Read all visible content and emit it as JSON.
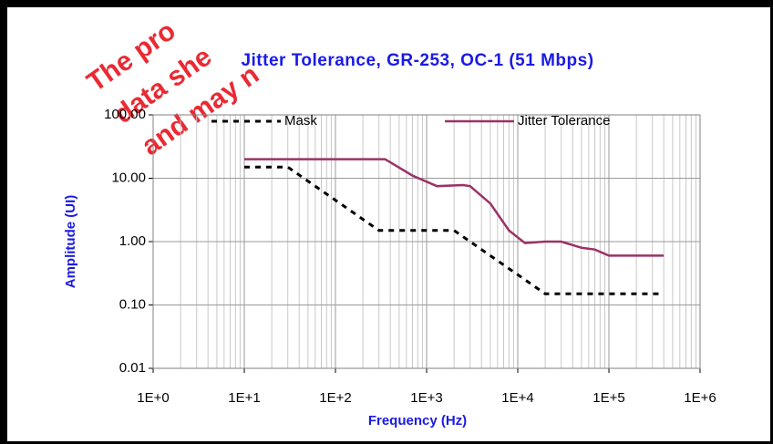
{
  "chart_data": {
    "type": "line",
    "title": "Jitter Tolerance, GR-253, OC-1 (51 Mbps)",
    "xlabel": "Frequency (Hz)",
    "ylabel": "Amplitude (UI)",
    "watermark": [
      "The pro",
      "data she",
      "and may n"
    ],
    "xlog": true,
    "ylog": true,
    "grid": true,
    "minor_xgrid": true,
    "xlim": [
      1,
      1000000
    ],
    "ylim": [
      0.01,
      100
    ],
    "xticks": [
      {
        "value": 1,
        "label": "1E+0"
      },
      {
        "value": 10,
        "label": "1E+1"
      },
      {
        "value": 100,
        "label": "1E+2"
      },
      {
        "value": 1000,
        "label": "1E+3"
      },
      {
        "value": 10000,
        "label": "1E+4"
      },
      {
        "value": 100000,
        "label": "1E+5"
      },
      {
        "value": 1000000,
        "label": "1E+6"
      }
    ],
    "yticks": [
      0.01,
      {
        "value": 0.1,
        "label": "0.10"
      },
      {
        "value": 1,
        "label": "1.00"
      },
      {
        "value": 10,
        "label": "10.00"
      },
      {
        "value": 100,
        "label": "100.00"
      }
    ],
    "legend": "top",
    "series": [
      {
        "name": "Mask",
        "color": "#000000",
        "dashed": true,
        "x": [
          10,
          30,
          300,
          2000,
          20000,
          400000
        ],
        "values": [
          15,
          15,
          1.5,
          1.5,
          0.15,
          0.15
        ]
      },
      {
        "name": "Jitter Tolerance",
        "color": "#993366",
        "dashed": false,
        "x": [
          10,
          350,
          700,
          1300,
          2500,
          3000,
          5000,
          8000,
          12000,
          20000,
          30000,
          50000,
          70000,
          100000,
          400000
        ],
        "values": [
          20,
          20,
          11,
          7.5,
          7.8,
          7.5,
          4,
          1.5,
          0.95,
          1.0,
          1.0,
          0.8,
          0.75,
          0.6,
          0.6
        ]
      }
    ]
  }
}
